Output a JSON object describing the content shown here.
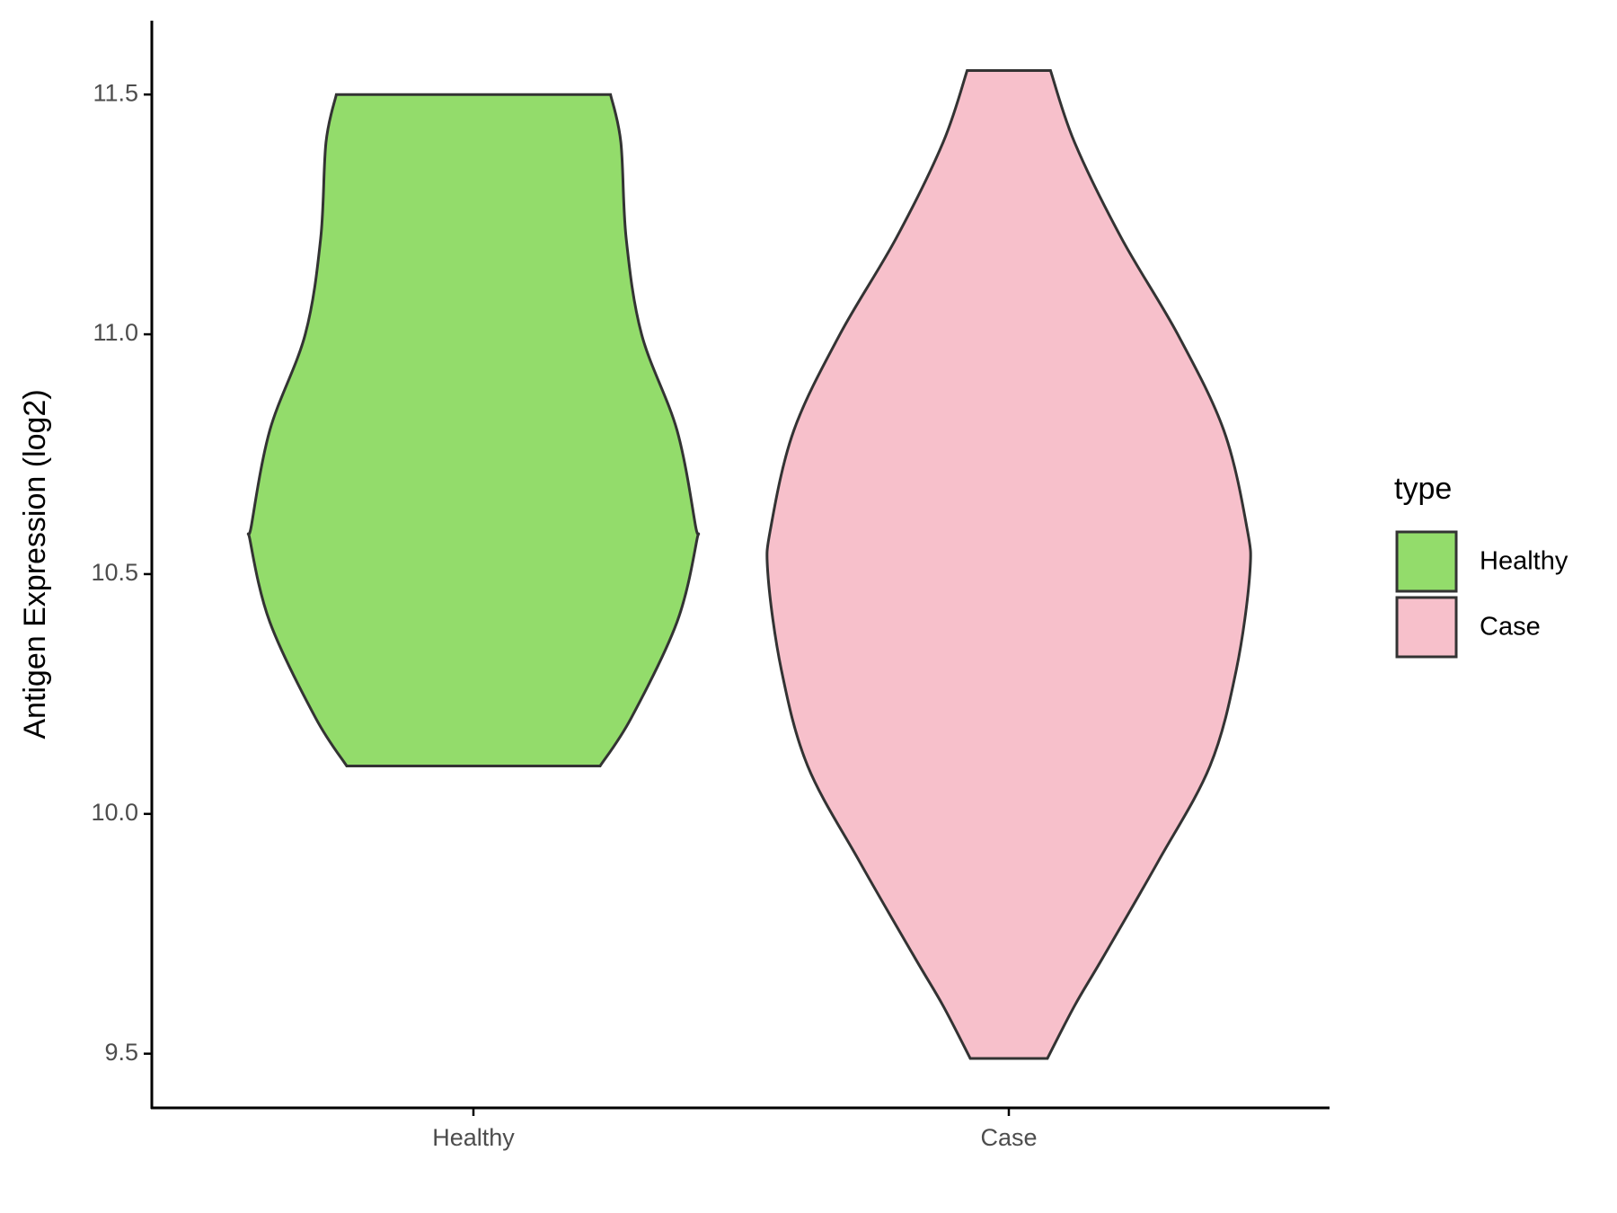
{
  "chart_data": {
    "type": "violin",
    "y_label": "Antigen Expression (log2)",
    "categories": [
      "Healthy",
      "Case"
    ],
    "legend_title": "type",
    "ylim": [
      9.387,
      11.654
    ],
    "yticks": [
      {
        "value": 9.5,
        "label": "9.5"
      },
      {
        "value": 10.0,
        "label": "10.0"
      },
      {
        "value": 10.5,
        "label": "10.5"
      },
      {
        "value": 11.0,
        "label": "11.0"
      },
      {
        "value": 11.5,
        "label": "11.5"
      }
    ],
    "series": [
      {
        "name": "Healthy",
        "color": "#93dc6b",
        "y": [
          11.5,
          11.4,
          11.2,
          11.0,
          10.8,
          10.6,
          10.57,
          10.4,
          10.2,
          10.1
        ],
        "density": [
          0.569,
          0.612,
          0.634,
          0.698,
          0.845,
          0.922,
          0.927,
          0.845,
          0.655,
          0.526
        ]
      },
      {
        "name": "Case",
        "color": "#f7c0cb",
        "y": [
          11.55,
          11.4,
          11.2,
          11.0,
          10.8,
          10.6,
          10.5,
          10.3,
          10.1,
          9.9,
          9.7,
          9.6,
          9.49
        ],
        "density": [
          0.173,
          0.273,
          0.468,
          0.701,
          0.892,
          0.987,
          1.0,
          0.944,
          0.835,
          0.619,
          0.39,
          0.273,
          0.16
        ]
      }
    ]
  }
}
